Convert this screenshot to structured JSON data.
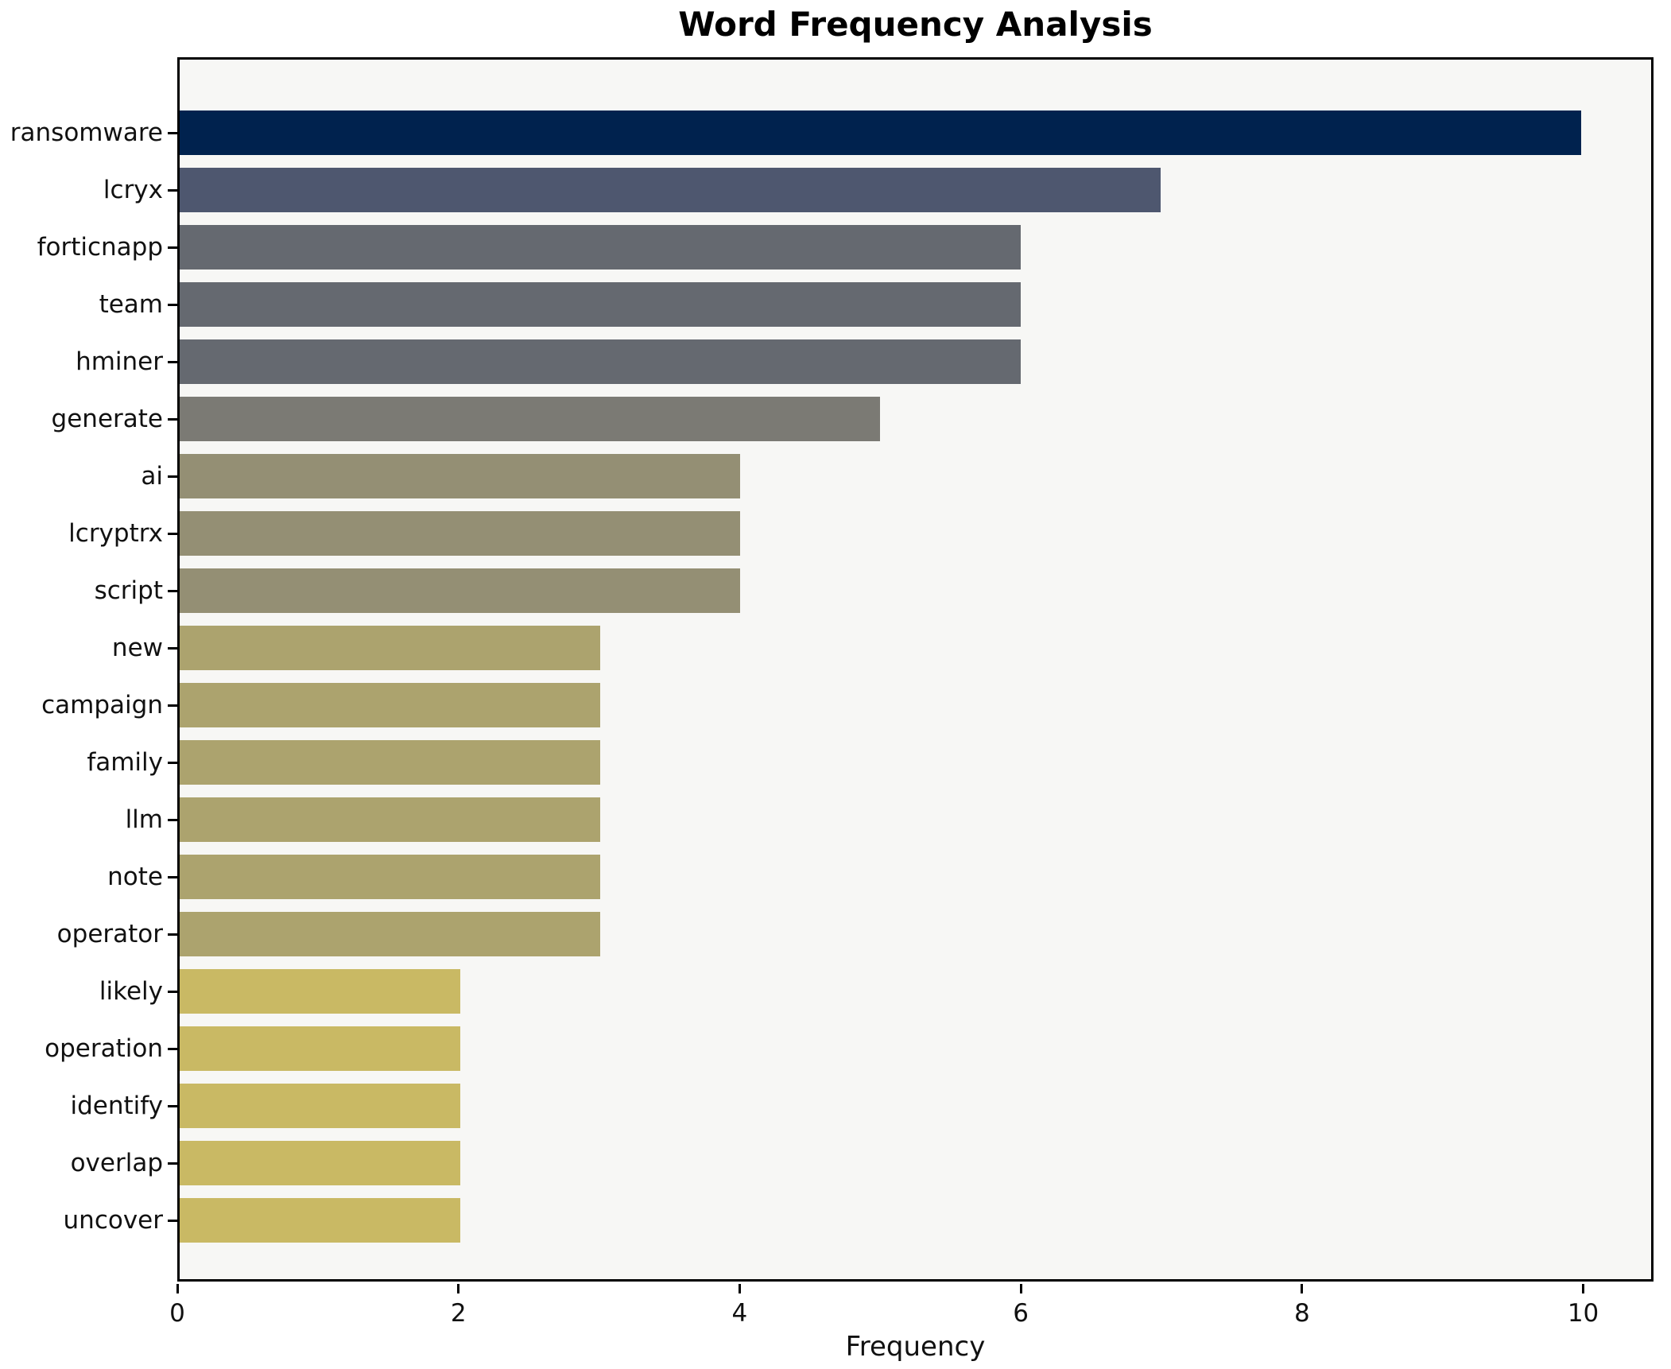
{
  "chart_data": {
    "type": "bar",
    "orientation": "horizontal",
    "title": "Word Frequency Analysis",
    "xlabel": "Frequency",
    "ylabel": "",
    "categories": [
      "ransomware",
      "lcryx",
      "forticnapp",
      "team",
      "hminer",
      "generate",
      "ai",
      "lcryptrx",
      "script",
      "new",
      "campaign",
      "family",
      "llm",
      "note",
      "operator",
      "likely",
      "operation",
      "identify",
      "overlap",
      "uncover"
    ],
    "values": [
      10,
      7,
      6,
      6,
      6,
      5,
      4,
      4,
      4,
      3,
      3,
      3,
      3,
      3,
      3,
      2,
      2,
      2,
      2,
      2
    ],
    "bar_colors": [
      "#00224e",
      "#4e576f",
      "#656970",
      "#656970",
      "#656970",
      "#7b7a74",
      "#948f74",
      "#948f74",
      "#948f74",
      "#aca36e",
      "#aca36e",
      "#aca36e",
      "#aca36e",
      "#aca36e",
      "#aca36e",
      "#c9b964",
      "#c9b964",
      "#c9b964",
      "#c9b964",
      "#c9b964"
    ],
    "x_ticks": [
      0,
      2,
      4,
      6,
      8,
      10
    ],
    "xlim": [
      0,
      10.5
    ],
    "grid": false,
    "legend": "none",
    "plot_bg": "#f7f7f5",
    "figure_bg": "#ffffff",
    "spine_color": "#000000"
  }
}
